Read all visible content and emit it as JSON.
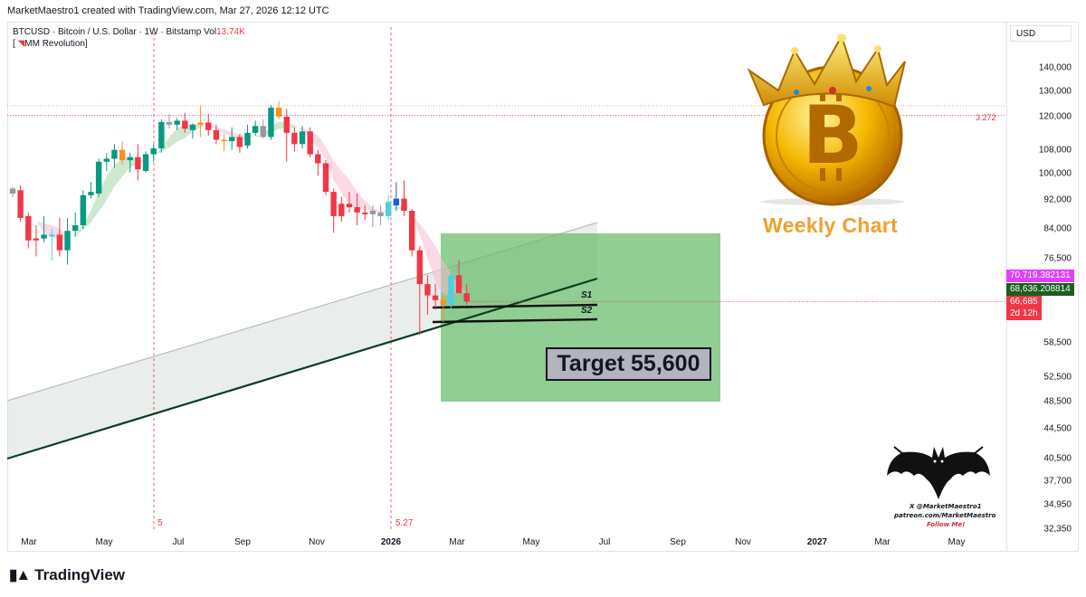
{
  "header": {
    "credit": "MarketMaestro1 created with TradingView.com, Mar 27, 2026 12:12 UTC"
  },
  "legend": {
    "symbol_line": "BTCUSD · Bitcoin / U.S. Dollar · 1W · Bitstamp",
    "vol_label": "Vol",
    "vol_value": "13.74K",
    "indicator": "MM Revolution"
  },
  "currency_button": "USD",
  "price_labels": {
    "p1": "70,719.382131",
    "p2": "68,636.208814",
    "p3": "66,685",
    "countdown": "2d 12h"
  },
  "fib_label": "3.272",
  "annotations": {
    "s1": "S1",
    "s2": "S2",
    "target": "Target 55,600",
    "weekly": "Weekly Chart",
    "vmark1": "5",
    "vmark2": "5.27"
  },
  "branding": {
    "logo_text": "TradingView",
    "bat_line1": "X @MarketMaestro1",
    "bat_line2": "patreon.com/MarketMaestro",
    "bat_line3": "Follow Me!"
  },
  "colors": {
    "bull": "#26a69a",
    "bull_bright": "#089981",
    "bear": "#f23645",
    "orange": "#f7931a",
    "target_zone": "#66bb6a",
    "trendline": "#0b3d20",
    "fib_line": "#f23645"
  },
  "chart_data": {
    "type": "candlestick",
    "interval": "1W",
    "y_scale": "log",
    "ylim": [
      32350,
      150000
    ],
    "y_ticks": [
      "140,000",
      "130,000",
      "120,000",
      "108,000",
      "100,000",
      "92,000",
      "84,000",
      "76,500",
      "58,500",
      "52,500",
      "48,500",
      "44,500",
      "40,500",
      "37,700",
      "34,950",
      "32,350"
    ],
    "x_ticks": [
      {
        "label": "Mar"
      },
      {
        "label": "May"
      },
      {
        "label": "Jul"
      },
      {
        "label": "Sep"
      },
      {
        "label": "Nov"
      },
      {
        "label": "2026",
        "bold": true
      },
      {
        "label": "Mar"
      },
      {
        "label": "May"
      },
      {
        "label": "Jul"
      },
      {
        "label": "Sep"
      },
      {
        "label": "Nov"
      },
      {
        "label": "2027",
        "bold": true
      },
      {
        "label": "Mar"
      },
      {
        "label": "May"
      }
    ],
    "candles": [
      {
        "o": 94000,
        "h": 96000,
        "l": 93000,
        "c": 95500,
        "col": "gray"
      },
      {
        "o": 95000,
        "h": 96500,
        "l": 86000,
        "c": 87000,
        "col": "red"
      },
      {
        "o": 87500,
        "h": 88500,
        "l": 79000,
        "c": 81000,
        "col": "red"
      },
      {
        "o": 81000,
        "h": 85000,
        "l": 77000,
        "c": 81500,
        "col": "red"
      },
      {
        "o": 81500,
        "h": 87500,
        "l": 80500,
        "c": 82500,
        "col": "green"
      },
      {
        "o": 82000,
        "h": 84000,
        "l": 76000,
        "c": 82500,
        "col": "cyan"
      },
      {
        "o": 82500,
        "h": 87000,
        "l": 77000,
        "c": 78500,
        "col": "red"
      },
      {
        "o": 78500,
        "h": 87000,
        "l": 75000,
        "c": 83500,
        "col": "green"
      },
      {
        "o": 83500,
        "h": 88500,
        "l": 82000,
        "c": 85000,
        "col": "green"
      },
      {
        "o": 85000,
        "h": 95000,
        "l": 84000,
        "c": 93500,
        "col": "green"
      },
      {
        "o": 93500,
        "h": 97500,
        "l": 92500,
        "c": 94500,
        "col": "green"
      },
      {
        "o": 94000,
        "h": 105000,
        "l": 93000,
        "c": 104000,
        "col": "green"
      },
      {
        "o": 104000,
        "h": 107000,
        "l": 101000,
        "c": 105000,
        "col": "green"
      },
      {
        "o": 105000,
        "h": 110000,
        "l": 102000,
        "c": 108000,
        "col": "green"
      },
      {
        "o": 108000,
        "h": 111000,
        "l": 103000,
        "c": 104500,
        "col": "orange"
      },
      {
        "o": 104500,
        "h": 107000,
        "l": 100500,
        "c": 105500,
        "col": "green"
      },
      {
        "o": 105500,
        "h": 110000,
        "l": 98000,
        "c": 101500,
        "col": "red"
      },
      {
        "o": 101000,
        "h": 107500,
        "l": 100500,
        "c": 106500,
        "col": "green"
      },
      {
        "o": 106500,
        "h": 110000,
        "l": 104000,
        "c": 108500,
        "col": "green"
      },
      {
        "o": 108500,
        "h": 119000,
        "l": 107000,
        "c": 118000,
        "col": "green"
      },
      {
        "o": 118000,
        "h": 121000,
        "l": 115500,
        "c": 117000,
        "col": "gray"
      },
      {
        "o": 117000,
        "h": 119500,
        "l": 115000,
        "c": 118500,
        "col": "green"
      },
      {
        "o": 118500,
        "h": 121500,
        "l": 114000,
        "c": 115500,
        "col": "red"
      },
      {
        "o": 115000,
        "h": 117500,
        "l": 112000,
        "c": 117000,
        "col": "green"
      },
      {
        "o": 117000,
        "h": 124000,
        "l": 112500,
        "c": 117800,
        "col": "orange"
      },
      {
        "o": 117800,
        "h": 121000,
        "l": 113000,
        "c": 115000,
        "col": "red"
      },
      {
        "o": 115000,
        "h": 117000,
        "l": 110000,
        "c": 111500,
        "col": "red"
      },
      {
        "o": 111500,
        "h": 113500,
        "l": 107500,
        "c": 111000,
        "col": "orange"
      },
      {
        "o": 111000,
        "h": 116000,
        "l": 108000,
        "c": 112500,
        "col": "green"
      },
      {
        "o": 112500,
        "h": 113500,
        "l": 107000,
        "c": 109000,
        "col": "red"
      },
      {
        "o": 109500,
        "h": 117000,
        "l": 108500,
        "c": 114000,
        "col": "green"
      },
      {
        "o": 114000,
        "h": 118500,
        "l": 113000,
        "c": 116500,
        "col": "green"
      },
      {
        "o": 116500,
        "h": 119000,
        "l": 112000,
        "c": 112500,
        "col": "gray"
      },
      {
        "o": 112500,
        "h": 124500,
        "l": 111500,
        "c": 123500,
        "col": "green"
      },
      {
        "o": 123500,
        "h": 126200,
        "l": 119000,
        "c": 120000,
        "col": "orange"
      },
      {
        "o": 120000,
        "h": 123000,
        "l": 104000,
        "c": 114000,
        "col": "red"
      },
      {
        "o": 114000,
        "h": 116000,
        "l": 107500,
        "c": 110000,
        "col": "red"
      },
      {
        "o": 110000,
        "h": 116500,
        "l": 108500,
        "c": 114500,
        "col": "green"
      },
      {
        "o": 114500,
        "h": 116000,
        "l": 105500,
        "c": 106500,
        "col": "red"
      },
      {
        "o": 106500,
        "h": 108000,
        "l": 99500,
        "c": 103500,
        "col": "red"
      },
      {
        "o": 103500,
        "h": 104500,
        "l": 93500,
        "c": 94500,
        "col": "red"
      },
      {
        "o": 94500,
        "h": 95500,
        "l": 83000,
        "c": 87500,
        "col": "red"
      },
      {
        "o": 87500,
        "h": 93000,
        "l": 86000,
        "c": 91000,
        "col": "red"
      },
      {
        "o": 91000,
        "h": 94500,
        "l": 88500,
        "c": 90000,
        "col": "red"
      },
      {
        "o": 90000,
        "h": 94000,
        "l": 85000,
        "c": 88500,
        "col": "red"
      },
      {
        "o": 88500,
        "h": 90500,
        "l": 86500,
        "c": 88000,
        "col": "red"
      },
      {
        "o": 88000,
        "h": 90500,
        "l": 84500,
        "c": 89000,
        "col": "gray"
      },
      {
        "o": 88500,
        "h": 90500,
        "l": 85000,
        "c": 87500,
        "col": "gray"
      },
      {
        "o": 87500,
        "h": 93500,
        "l": 86500,
        "c": 91500,
        "col": "cyan"
      },
      {
        "o": 90500,
        "h": 97500,
        "l": 89000,
        "c": 92500,
        "col": "blue"
      },
      {
        "o": 92500,
        "h": 98000,
        "l": 87500,
        "c": 89000,
        "col": "red"
      },
      {
        "o": 89000,
        "h": 89500,
        "l": 77000,
        "c": 78500,
        "col": "red"
      },
      {
        "o": 78500,
        "h": 79500,
        "l": 60000,
        "c": 70500,
        "col": "red"
      },
      {
        "o": 70500,
        "h": 72500,
        "l": 64000,
        "c": 68000,
        "col": "red"
      },
      {
        "o": 68000,
        "h": 70500,
        "l": 65000,
        "c": 67000,
        "col": "red"
      },
      {
        "o": 67000,
        "h": 68500,
        "l": 62500,
        "c": 66000,
        "col": "orange"
      },
      {
        "o": 66000,
        "h": 73500,
        "l": 64500,
        "c": 72500,
        "col": "cyan"
      },
      {
        "o": 72500,
        "h": 76000,
        "l": 68500,
        "c": 68500,
        "col": "red"
      },
      {
        "o": 68500,
        "h": 70500,
        "l": 66000,
        "c": 66685,
        "col": "red"
      }
    ],
    "s1": 66000,
    "s2": 62500,
    "target": 55600,
    "fib_3272": 120500,
    "current_price": 66685
  }
}
